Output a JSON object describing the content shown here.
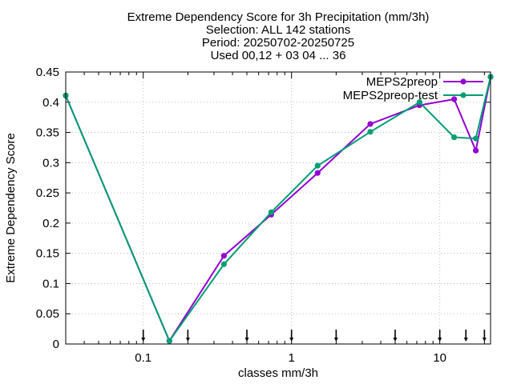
{
  "chart_data": {
    "type": "line",
    "title_lines": [
      "Extreme Dependency Score  for 3h Precipitation (mm/3h)",
      "Selection: ALL    142 stations",
      "Period: 20250702-20250725",
      "Used 00,12 + 03 04 ... 36"
    ],
    "xlabel": "classes mm/3h",
    "ylabel": "Extreme Dependency Score",
    "x_scale": "log",
    "xlim": [
      0.03,
      22
    ],
    "ylim": [
      0,
      0.45
    ],
    "x_ticks": [
      {
        "value": 0.1,
        "label": "0.1"
      },
      {
        "value": 1,
        "label": "1"
      },
      {
        "value": 10,
        "label": "10"
      }
    ],
    "y_ticks": [
      {
        "value": 0,
        "label": "0"
      },
      {
        "value": 0.05,
        "label": "0.05"
      },
      {
        "value": 0.1,
        "label": "0.1"
      },
      {
        "value": 0.15,
        "label": "0.15"
      },
      {
        "value": 0.2,
        "label": "0.2"
      },
      {
        "value": 0.25,
        "label": "0.25"
      },
      {
        "value": 0.3,
        "label": "0.3"
      },
      {
        "value": 0.35,
        "label": "0.35"
      },
      {
        "value": 0.4,
        "label": "0.4"
      },
      {
        "value": 0.45,
        "label": "0.45"
      }
    ],
    "threshold_markers": [
      0.1,
      0.2,
      0.5,
      1,
      2,
      5,
      10,
      15,
      20
    ],
    "grid": true,
    "legend_position": "top-right",
    "series": [
      {
        "name": "MEPS2preop",
        "color": "#9400d3",
        "x": [
          0.03,
          0.15,
          0.35,
          0.73,
          1.5,
          3.4,
          7.3,
          12.5,
          17.5,
          22
        ],
        "y": [
          0.411,
          0.005,
          0.146,
          0.214,
          0.283,
          0.364,
          0.395,
          0.405,
          0.32,
          0.442
        ]
      },
      {
        "name": "MEPS2preop-test",
        "color": "#009e73",
        "x": [
          0.03,
          0.15,
          0.35,
          0.73,
          1.5,
          3.4,
          7.3,
          12.5,
          17.5,
          22
        ],
        "y": [
          0.411,
          0.005,
          0.132,
          0.218,
          0.295,
          0.351,
          0.4,
          0.342,
          0.34,
          0.442
        ]
      }
    ]
  }
}
